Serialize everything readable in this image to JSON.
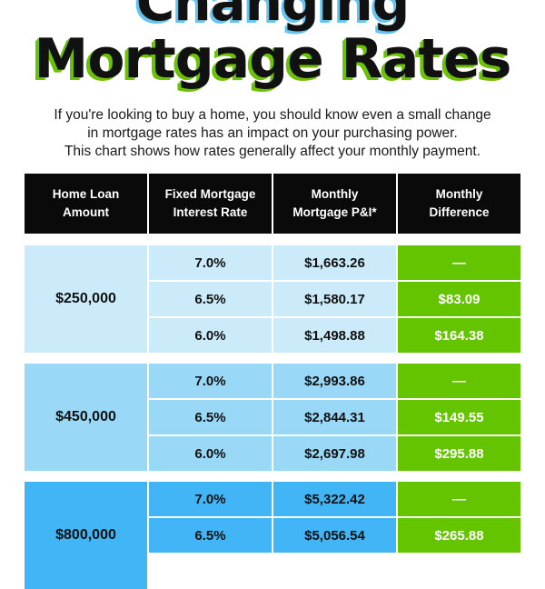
{
  "title": {
    "line1": "Changing",
    "line2": "Mortgage Rates"
  },
  "subtitle": [
    "If you're looking to buy a home, you should know even a small change",
    "in mortgage rates has an impact on your purchasing power.",
    "This chart shows how rates generally affect your monthly payment."
  ],
  "table": {
    "headers": [
      [
        "Home Loan",
        "Amount"
      ],
      [
        "Fixed Mortgage",
        "Interest Rate"
      ],
      [
        "Monthly",
        "Mortgage P&I*"
      ],
      [
        "Monthly",
        "Difference"
      ]
    ],
    "groups": [
      {
        "amount": "$250,000",
        "color": "#ccebfa",
        "rows": [
          {
            "rate": "7.0%",
            "payment": "$1,663.26",
            "difference": "—"
          },
          {
            "rate": "6.5%",
            "payment": "$1,580.17",
            "difference": "$83.09"
          },
          {
            "rate": "6.0%",
            "payment": "$1,498.88",
            "difference": "$164.38"
          }
        ]
      },
      {
        "amount": "$450,000",
        "color": "#99d9f7",
        "rows": [
          {
            "rate": "7.0%",
            "payment": "$2,993.86",
            "difference": "—"
          },
          {
            "rate": "6.5%",
            "payment": "$2,844.31",
            "difference": "$149.55"
          },
          {
            "rate": "6.0%",
            "payment": "$2,697.98",
            "difference": "$295.88"
          }
        ]
      },
      {
        "amount": "$800,000",
        "color": "#41b5f5",
        "rows": [
          {
            "rate": "7.0%",
            "payment": "$5,322.42",
            "difference": "—"
          },
          {
            "rate": "6.5%",
            "payment": "$5,056.54",
            "difference": "$265.88"
          }
        ]
      }
    ]
  },
  "colors": {
    "header_bg": "#0a0a0a",
    "difference_bg": "#65c400",
    "title_shadow_top": "#65c4ee",
    "title_shadow_main": "#6cc200"
  }
}
